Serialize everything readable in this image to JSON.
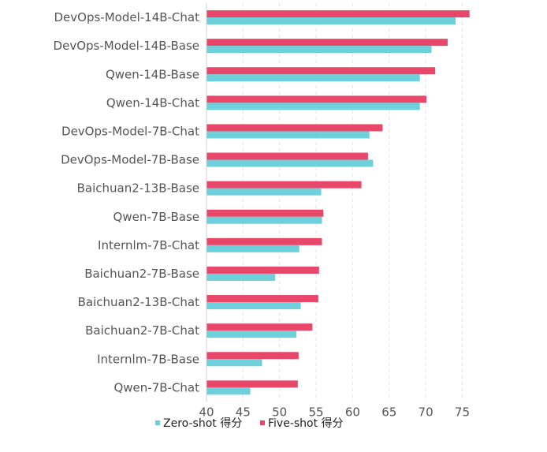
{
  "chart_data": {
    "type": "bar",
    "orientation": "horizontal",
    "categories": [
      "DevOps-Model-14B-Chat",
      "DevOps-Model-14B-Base",
      "Qwen-14B-Base",
      "Qwen-14B-Chat",
      "DevOps-Model-7B-Chat",
      "DevOps-Model-7B-Base",
      "Baichuan2-13B-Base",
      "Qwen-7B-Base",
      "Internlm-7B-Chat",
      "Baichuan2-7B-Base",
      "Baichuan2-13B-Chat",
      "Baichuan2-7B-Chat",
      "Internlm-7B-Base",
      "Qwen-7B-Chat"
    ],
    "series": [
      {
        "name": "Five-shot 得分",
        "color": "#e8476a",
        "values": [
          76.0,
          73.0,
          71.3,
          70.1,
          64.1,
          62.1,
          61.2,
          56.0,
          55.8,
          55.4,
          55.3,
          54.5,
          52.6,
          52.5
        ]
      },
      {
        "name": "Zero-shot 得分",
        "color": "#6dd0da",
        "values": [
          74.1,
          70.8,
          69.2,
          69.2,
          62.3,
          62.8,
          55.7,
          55.8,
          52.7,
          49.4,
          52.9,
          52.3,
          47.6,
          46.0
        ]
      }
    ],
    "xlim": [
      40,
      77
    ],
    "xticks": [
      40,
      45,
      50,
      55,
      60,
      65,
      70,
      75
    ],
    "grid": true,
    "legend": {
      "placement": "bottom",
      "entries": [
        "Zero-shot 得分",
        "Five-shot 得分"
      ]
    },
    "title": "",
    "xlabel": "",
    "ylabel": ""
  }
}
